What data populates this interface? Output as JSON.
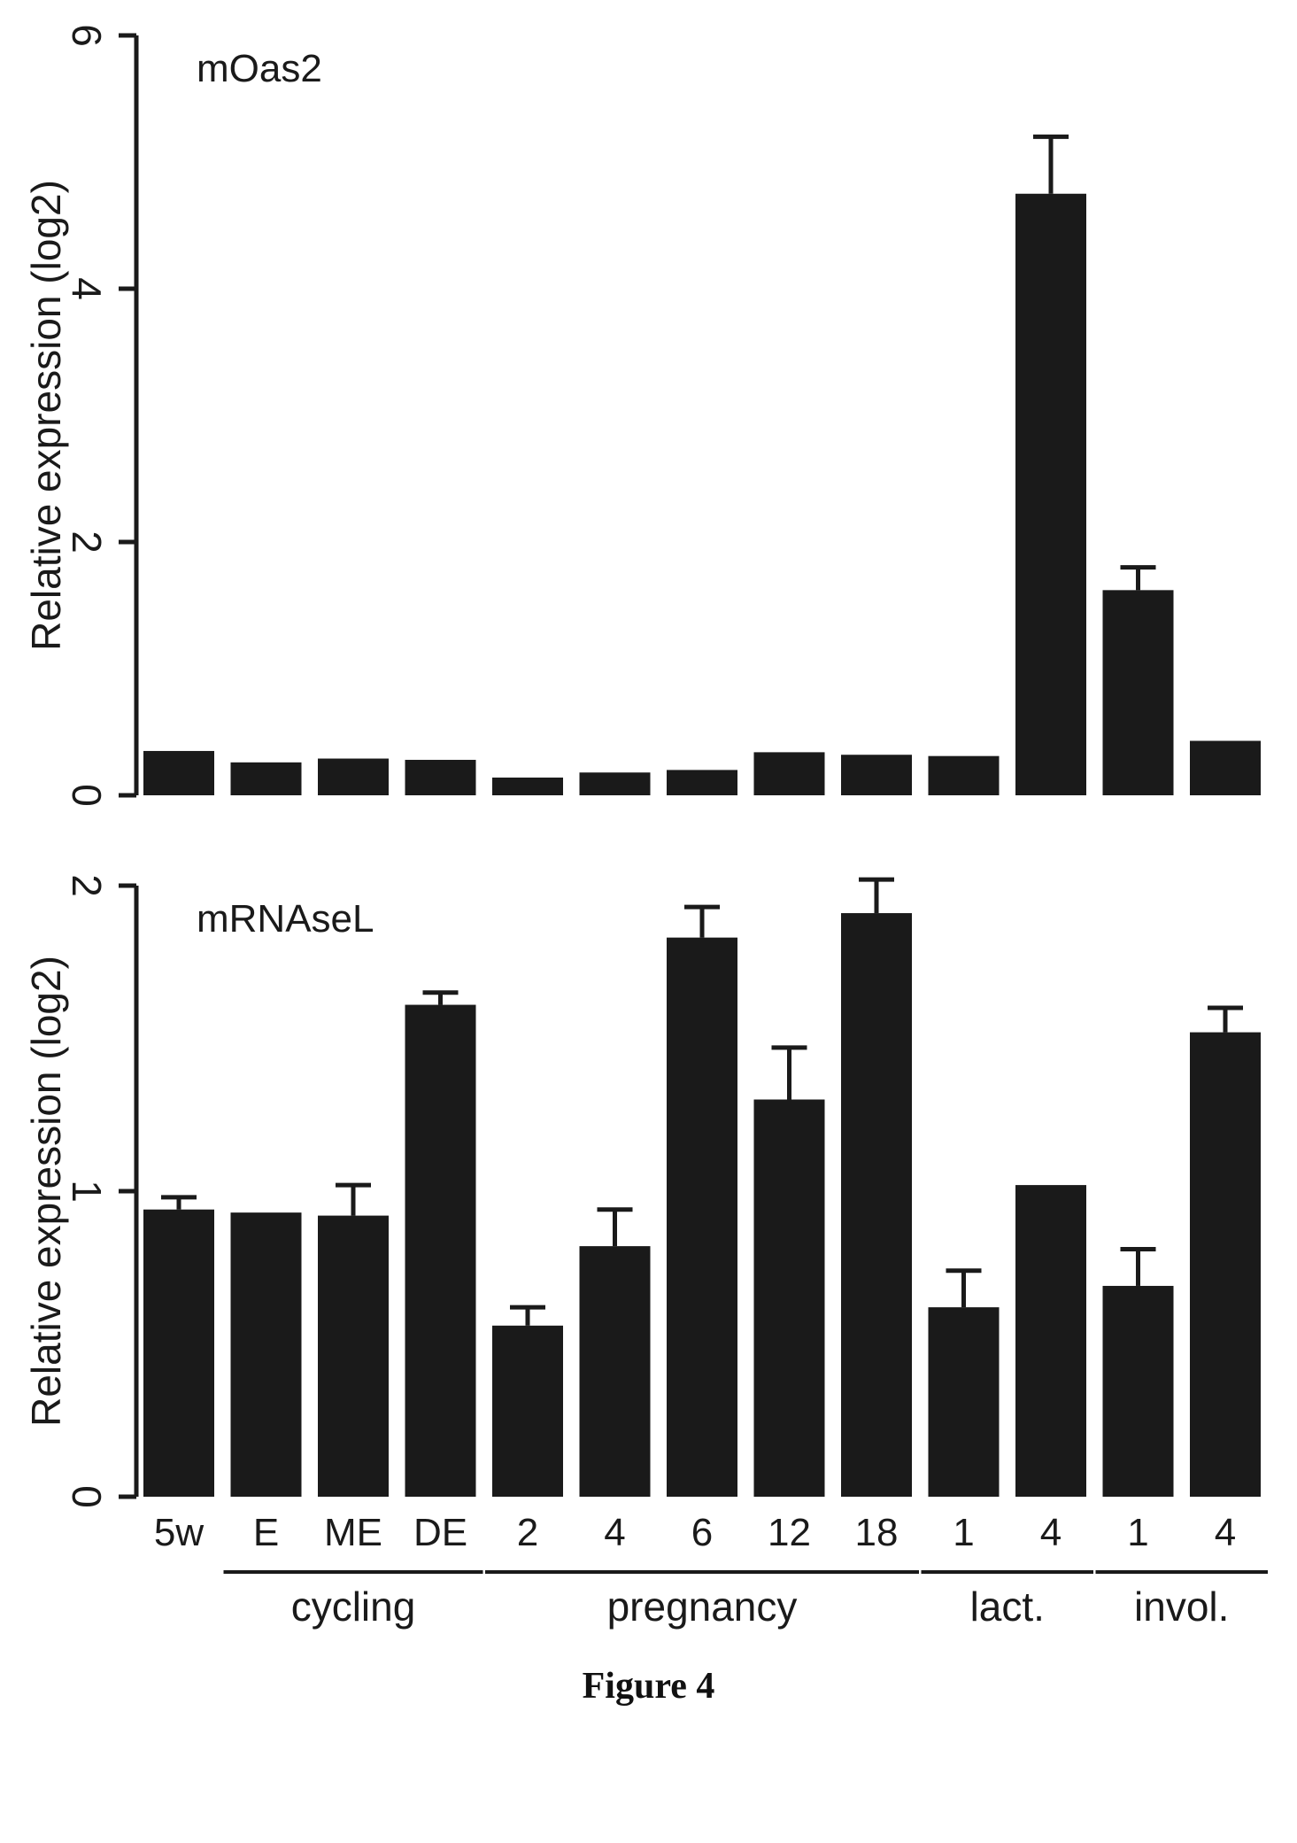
{
  "caption": "Figure 4",
  "chart_data": [
    {
      "type": "bar",
      "title": "mOas2",
      "ylabel": "Relative expression (log2)",
      "xlabel": "",
      "ylim": [
        0,
        6
      ],
      "yticks": [
        0,
        2,
        4,
        6
      ],
      "categories": [
        "5w",
        "E",
        "ME",
        "DE",
        "2",
        "4",
        "6",
        "12",
        "18",
        "1",
        "4",
        "1",
        "4"
      ],
      "values": [
        0.35,
        0.26,
        0.29,
        0.28,
        0.14,
        0.18,
        0.2,
        0.34,
        0.32,
        0.31,
        4.75,
        1.62,
        0.43
      ],
      "errors": [
        0,
        0,
        0,
        0,
        0,
        0,
        0,
        0,
        0,
        0,
        0.45,
        0.18,
        0
      ],
      "show_category_labels": false,
      "color": "#1a1a1a"
    },
    {
      "type": "bar",
      "title": "mRNAseL",
      "ylabel": "Relative expression (log2)",
      "xlabel": "",
      "ylim": [
        0,
        2
      ],
      "yticks": [
        0,
        1,
        2
      ],
      "categories": [
        "5w",
        "E",
        "ME",
        "DE",
        "2",
        "4",
        "6",
        "12",
        "18",
        "1",
        "4",
        "1",
        "4"
      ],
      "values": [
        0.94,
        0.93,
        0.92,
        1.61,
        0.56,
        0.82,
        1.83,
        1.3,
        1.91,
        0.62,
        1.02,
        0.69,
        1.52
      ],
      "errors": [
        0.04,
        0,
        0.1,
        0.04,
        0.06,
        0.12,
        0.1,
        0.17,
        0.11,
        0.12,
        0,
        0.12,
        0.08
      ],
      "show_category_labels": true,
      "groups": [
        {
          "label": "cycling",
          "start": 1,
          "end": 3
        },
        {
          "label": "pregnancy",
          "start": 4,
          "end": 8
        },
        {
          "label": "lact.",
          "start": 9,
          "end": 10
        },
        {
          "label": "invol.",
          "start": 11,
          "end": 12
        }
      ],
      "color": "#1a1a1a"
    }
  ]
}
